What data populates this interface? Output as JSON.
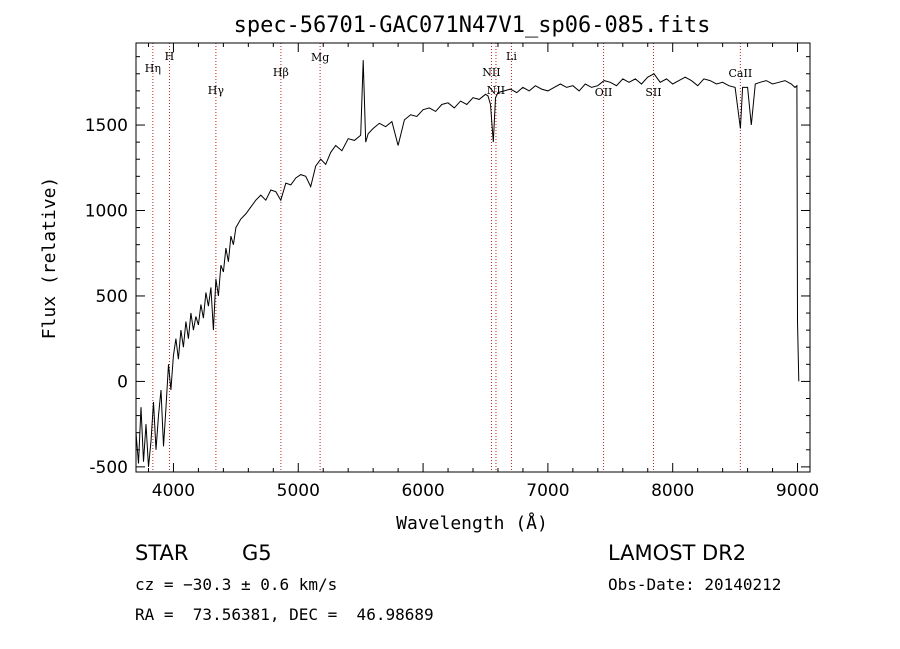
{
  "chart_data": {
    "type": "line",
    "title": "spec-56701-GAC071N47V1_sp06-085.fits",
    "xlabel": "Wavelength (Å)",
    "ylabel": "Flux (relative)",
    "xlim": [
      3700,
      9100
    ],
    "ylim": [
      -530,
      1980
    ],
    "xticks": [
      4000,
      5000,
      6000,
      7000,
      8000,
      9000
    ],
    "yticks": [
      -500,
      0,
      500,
      1000,
      1500
    ],
    "grid": false,
    "series": [
      {
        "x": [
          3700,
          3720,
          3740,
          3760,
          3780,
          3800,
          3820,
          3840,
          3860,
          3880,
          3900,
          3920,
          3940,
          3960,
          3980,
          4000,
          4020,
          4040,
          4060,
          4080,
          4100,
          4120,
          4140,
          4160,
          4180,
          4200,
          4220,
          4240,
          4260,
          4280,
          4300,
          4320,
          4340,
          4360,
          4380,
          4400,
          4420,
          4440,
          4460,
          4480,
          4500,
          4540,
          4580,
          4620,
          4660,
          4700,
          4740,
          4780,
          4820,
          4860,
          4900,
          4940,
          4980,
          5020,
          5060,
          5100,
          5140,
          5180,
          5220,
          5260,
          5300,
          5350,
          5400,
          5450,
          5500,
          5520,
          5540,
          5560,
          5600,
          5650,
          5700,
          5750,
          5800,
          5850,
          5900,
          5950,
          6000,
          6050,
          6100,
          6150,
          6200,
          6250,
          6300,
          6350,
          6400,
          6450,
          6500,
          6520,
          6540,
          6563,
          6580,
          6600,
          6650,
          6700,
          6750,
          6800,
          6850,
          6900,
          6950,
          7000,
          7050,
          7100,
          7150,
          7200,
          7250,
          7300,
          7350,
          7400,
          7450,
          7500,
          7550,
          7600,
          7650,
          7700,
          7750,
          7800,
          7850,
          7900,
          7950,
          8000,
          8050,
          8100,
          8150,
          8200,
          8250,
          8300,
          8350,
          8400,
          8450,
          8500,
          8542,
          8560,
          8600,
          8630,
          8662,
          8700,
          8750,
          8800,
          8850,
          8900,
          8950,
          8980,
          8995,
          9000,
          9010
        ],
        "y": [
          -300,
          -480,
          -150,
          -470,
          -250,
          -500,
          -350,
          -120,
          -400,
          -200,
          -50,
          -380,
          -150,
          100,
          -50,
          150,
          250,
          130,
          300,
          200,
          350,
          250,
          400,
          300,
          380,
          330,
          450,
          370,
          520,
          440,
          550,
          300,
          600,
          500,
          680,
          640,
          780,
          700,
          850,
          800,
          900,
          950,
          980,
          1020,
          1060,
          1090,
          1060,
          1120,
          1110,
          1060,
          1160,
          1150,
          1190,
          1210,
          1200,
          1140,
          1260,
          1300,
          1270,
          1340,
          1380,
          1350,
          1420,
          1410,
          1440,
          1880,
          1400,
          1450,
          1480,
          1510,
          1490,
          1520,
          1380,
          1530,
          1560,
          1550,
          1590,
          1600,
          1580,
          1620,
          1630,
          1600,
          1640,
          1620,
          1660,
          1650,
          1680,
          1670,
          1620,
          1400,
          1660,
          1690,
          1700,
          1710,
          1690,
          1720,
          1700,
          1730,
          1710,
          1700,
          1720,
          1740,
          1720,
          1730,
          1700,
          1740,
          1720,
          1730,
          1760,
          1750,
          1730,
          1770,
          1750,
          1770,
          1740,
          1780,
          1800,
          1750,
          1770,
          1740,
          1760,
          1780,
          1760,
          1730,
          1770,
          1760,
          1740,
          1750,
          1730,
          1720,
          1480,
          1720,
          1720,
          1500,
          1740,
          1750,
          1760,
          1740,
          1750,
          1760,
          1740,
          1720,
          1730,
          350,
          0
        ]
      }
    ],
    "annotations": [
      {
        "label": "Hη",
        "x": 3835
      },
      {
        "label": "H",
        "x": 3968
      },
      {
        "label": "Hγ",
        "x": 4340
      },
      {
        "label": "Hβ",
        "x": 4861
      },
      {
        "label": "Mg",
        "x": 5175
      },
      {
        "label": "NII",
        "x": 6548
      },
      {
        "label": "NII",
        "x": 6584
      },
      {
        "label": "Li",
        "x": 6708
      },
      {
        "label": "OII",
        "x": 7446
      },
      {
        "label": "SII",
        "x": 7846
      },
      {
        "label": "CaII",
        "x": 8542
      }
    ]
  },
  "info": {
    "class": "STAR",
    "subclass": "G5",
    "survey": "LAMOST DR2",
    "cz": "cz = −30.3 ± 0.6 km/s",
    "obs_date": "Obs-Date: 20140212",
    "radec": "RA =  73.56381, DEC =  46.98689"
  },
  "colors": {
    "spectrum": "#000000",
    "line_markers": "#b22222",
    "axes": "#000000"
  }
}
